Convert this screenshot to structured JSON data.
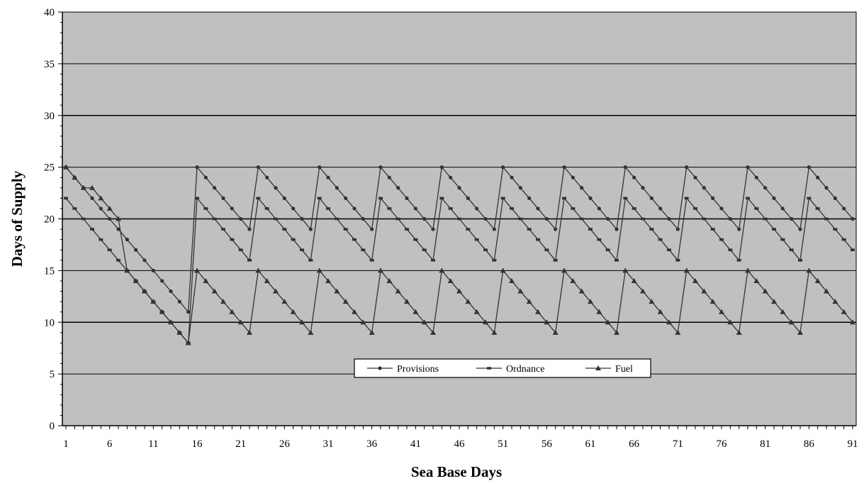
{
  "chart_data": {
    "type": "line",
    "xlabel": "Sea Base Days",
    "ylabel": "Days of Supply",
    "ylim": [
      0,
      40
    ],
    "yticks": [
      0,
      5,
      10,
      15,
      20,
      25,
      30,
      35,
      40
    ],
    "xlim": [
      1,
      91
    ],
    "xticks": [
      1,
      6,
      11,
      16,
      21,
      26,
      31,
      36,
      41,
      46,
      51,
      56,
      61,
      66,
      71,
      76,
      81,
      86,
      91
    ],
    "grid": "horizontal",
    "legend_position": "bottom-center",
    "colors": {
      "plot_background": "#c0c0c0",
      "line": "#333333",
      "axis": "#000000"
    },
    "series": [
      {
        "name": "Provisions",
        "marker": "circle",
        "x": [
          1,
          2,
          3,
          4,
          5,
          6,
          7,
          8,
          9,
          10,
          11,
          12,
          13,
          14,
          15,
          16,
          17,
          18,
          19,
          20,
          21,
          22,
          23,
          24,
          25,
          26,
          27,
          28,
          29,
          30,
          31,
          32,
          33,
          34,
          35,
          36,
          37,
          38,
          39,
          40,
          41,
          42,
          43,
          44,
          45,
          46,
          47,
          48,
          49,
          50,
          51,
          52,
          53,
          54,
          55,
          56,
          57,
          58,
          59,
          60,
          61,
          62,
          63,
          64,
          65,
          66,
          67,
          68,
          69,
          70,
          71,
          72,
          73,
          74,
          75,
          76,
          77,
          78,
          79,
          80,
          81,
          82,
          83,
          84,
          85,
          86,
          87,
          88,
          89,
          90,
          91
        ],
        "y": [
          25,
          24,
          23,
          22,
          21,
          20,
          19,
          18,
          17,
          16,
          15,
          14,
          13,
          12,
          11,
          25,
          24,
          23,
          22,
          21,
          20,
          19,
          25,
          24,
          23,
          22,
          21,
          20,
          19,
          25,
          24,
          23,
          22,
          21,
          20,
          19,
          25,
          24,
          23,
          22,
          21,
          20,
          19,
          25,
          24,
          23,
          22,
          21,
          20,
          19,
          25,
          24,
          23,
          22,
          21,
          20,
          19,
          25,
          24,
          23,
          22,
          21,
          20,
          19,
          25,
          24,
          23,
          22,
          21,
          20,
          19,
          25,
          24,
          23,
          22,
          21,
          20,
          19,
          25,
          24,
          23,
          22,
          21,
          20,
          19,
          25,
          24,
          23,
          22,
          21,
          20
        ]
      },
      {
        "name": "Ordnance",
        "marker": "dash",
        "x": [
          1,
          2,
          3,
          4,
          5,
          6,
          7,
          8,
          9,
          10,
          11,
          12,
          13,
          14,
          15,
          16,
          17,
          18,
          19,
          20,
          21,
          22,
          23,
          24,
          25,
          26,
          27,
          28,
          29,
          30,
          31,
          32,
          33,
          34,
          35,
          36,
          37,
          38,
          39,
          40,
          41,
          42,
          43,
          44,
          45,
          46,
          47,
          48,
          49,
          50,
          51,
          52,
          53,
          54,
          55,
          56,
          57,
          58,
          59,
          60,
          61,
          62,
          63,
          64,
          65,
          66,
          67,
          68,
          69,
          70,
          71,
          72,
          73,
          74,
          75,
          76,
          77,
          78,
          79,
          80,
          81,
          82,
          83,
          84,
          85,
          86,
          87,
          88,
          89,
          90,
          91
        ],
        "y": [
          22,
          21,
          20,
          19,
          18,
          17,
          16,
          15,
          14,
          13,
          12,
          11,
          10,
          9,
          8,
          22,
          21,
          20,
          19,
          18,
          17,
          16,
          22,
          21,
          20,
          19,
          18,
          17,
          16,
          22,
          21,
          20,
          19,
          18,
          17,
          16,
          22,
          21,
          20,
          19,
          18,
          17,
          16,
          22,
          21,
          20,
          19,
          18,
          17,
          16,
          22,
          21,
          20,
          19,
          18,
          17,
          16,
          22,
          21,
          20,
          19,
          18,
          17,
          16,
          22,
          21,
          20,
          19,
          18,
          17,
          16,
          22,
          21,
          20,
          19,
          18,
          17,
          16,
          22,
          21,
          20,
          19,
          18,
          17,
          16,
          22,
          21,
          20,
          19,
          18,
          17
        ]
      },
      {
        "name": "Fuel",
        "marker": "triangle",
        "x": [
          1,
          2,
          3,
          4,
          5,
          6,
          7,
          8,
          9,
          10,
          11,
          12,
          13,
          14,
          15,
          16,
          17,
          18,
          19,
          20,
          21,
          22,
          23,
          24,
          25,
          26,
          27,
          28,
          29,
          30,
          31,
          32,
          33,
          34,
          35,
          36,
          37,
          38,
          39,
          40,
          41,
          42,
          43,
          44,
          45,
          46,
          47,
          48,
          49,
          50,
          51,
          52,
          53,
          54,
          55,
          56,
          57,
          58,
          59,
          60,
          61,
          62,
          63,
          64,
          65,
          66,
          67,
          68,
          69,
          70,
          71,
          72,
          73,
          74,
          75,
          76,
          77,
          78,
          79,
          80,
          81,
          82,
          83,
          84,
          85,
          86,
          87,
          88,
          89,
          90,
          91
        ],
        "y": [
          25,
          24,
          23,
          23,
          22,
          21,
          20,
          15,
          14,
          13,
          12,
          11,
          10,
          9,
          8,
          15,
          14,
          13,
          12,
          11,
          10,
          9,
          15,
          14,
          13,
          12,
          11,
          10,
          9,
          15,
          14,
          13,
          12,
          11,
          10,
          9,
          15,
          14,
          13,
          12,
          11,
          10,
          9,
          15,
          14,
          13,
          12,
          11,
          10,
          9,
          15,
          14,
          13,
          12,
          11,
          10,
          9,
          15,
          14,
          13,
          12,
          11,
          10,
          9,
          15,
          14,
          13,
          12,
          11,
          10,
          9,
          15,
          14,
          13,
          12,
          11,
          10,
          9,
          15,
          14,
          13,
          12,
          11,
          10,
          9,
          15,
          14,
          13,
          12,
          11,
          10
        ]
      }
    ]
  }
}
